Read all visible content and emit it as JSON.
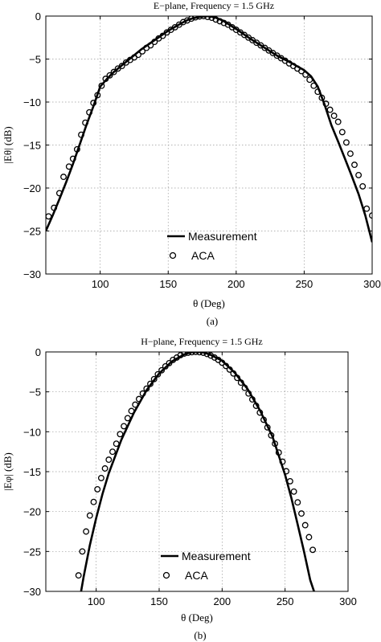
{
  "chart_data": [
    {
      "type": "line",
      "title": "E−plane, Frequency = 1.5 GHz",
      "xlabel": "θ (Deg)",
      "ylabel": "|Eθ| (dB)",
      "xlim": [
        60,
        300
      ],
      "ylim": [
        -30,
        0
      ],
      "xticks": [
        "100",
        "150",
        "200",
        "250",
        "300"
      ],
      "yticks": [
        "0",
        "−5",
        "−10",
        "−15",
        "−20",
        "−25",
        "−30"
      ],
      "grid": true,
      "legend_position": "lower-center",
      "caption": "(a)",
      "series": [
        {
          "name": "Measurement",
          "style": "solid-line",
          "x": [
            60,
            65,
            70,
            75,
            80,
            85,
            90,
            95,
            100,
            105,
            110,
            120,
            130,
            140,
            150,
            160,
            165,
            170,
            175,
            180,
            185,
            190,
            200,
            210,
            220,
            230,
            240,
            250,
            255,
            260,
            265,
            270,
            275,
            280,
            285,
            290,
            295,
            300
          ],
          "y": [
            -25,
            -23.2,
            -21.3,
            -19.3,
            -17.2,
            -14.9,
            -12.6,
            -10.5,
            -8.2,
            -7.3,
            -6.5,
            -5.2,
            -3.9,
            -2.8,
            -1.7,
            -0.8,
            -0.4,
            -0.2,
            -0.05,
            0,
            -0.2,
            -0.5,
            -1.5,
            -2.6,
            -3.6,
            -4.6,
            -5.4,
            -6.3,
            -7.0,
            -8.2,
            -10.3,
            -12.7,
            -14.6,
            -16.6,
            -18.6,
            -20.7,
            -23.2,
            -26.3
          ]
        },
        {
          "name": "ACA",
          "style": "open-circle",
          "x": [
            62,
            66,
            70,
            73,
            77,
            80,
            83,
            86,
            89,
            92,
            95,
            98,
            101,
            104,
            107,
            110,
            113,
            116,
            119,
            122,
            125,
            128,
            131,
            134,
            137,
            140,
            143,
            146,
            149,
            152,
            155,
            158,
            161,
            164,
            167,
            170,
            173,
            176,
            179,
            182,
            185,
            188,
            191,
            194,
            197,
            200,
            203,
            206,
            209,
            212,
            215,
            218,
            221,
            224,
            227,
            230,
            233,
            236,
            239,
            242,
            245,
            248,
            251,
            254,
            257,
            260,
            263,
            266,
            269,
            272,
            275,
            278,
            281,
            284,
            287,
            290,
            293,
            296,
            300
          ],
          "y": [
            -23.3,
            -22.3,
            -20.6,
            -18.7,
            -17.5,
            -16.6,
            -15.5,
            -13.8,
            -12.4,
            -11.2,
            -10.1,
            -9.2,
            -8.1,
            -7.3,
            -6.9,
            -6.5,
            -6.1,
            -5.8,
            -5.4,
            -5.1,
            -4.8,
            -4.5,
            -4.1,
            -3.7,
            -3.4,
            -3.0,
            -2.6,
            -2.3,
            -1.9,
            -1.6,
            -1.3,
            -1.0,
            -0.7,
            -0.5,
            -0.3,
            -0.15,
            -0.05,
            0,
            -0.1,
            -0.2,
            -0.4,
            -0.6,
            -0.8,
            -1.0,
            -1.3,
            -1.6,
            -1.9,
            -2.2,
            -2.5,
            -2.8,
            -3.1,
            -3.4,
            -3.7,
            -4.0,
            -4.3,
            -4.6,
            -4.9,
            -5.2,
            -5.5,
            -5.8,
            -6.1,
            -6.4,
            -6.8,
            -7.4,
            -8.1,
            -8.8,
            -9.5,
            -10.2,
            -10.9,
            -11.6,
            -12.3,
            -13.5,
            -14.7,
            -16.0,
            -17.3,
            -18.5,
            -19.8,
            -22.4,
            -23.2
          ]
        }
      ]
    },
    {
      "type": "line",
      "title": "H−plane, Frequency = 1.5 GHz",
      "xlabel": "θ (Deg)",
      "ylabel": "|Eφ| (dB)",
      "xlim": [
        60,
        300
      ],
      "ylim": [
        -30,
        0
      ],
      "xticks": [
        "100",
        "150",
        "200",
        "250",
        "300"
      ],
      "yticks": [
        "0",
        "−5",
        "−10",
        "−15",
        "−20",
        "−25",
        "−30"
      ],
      "grid": true,
      "legend_position": "lower-center",
      "caption": "(b)",
      "series": [
        {
          "name": "Measurement",
          "style": "solid-line",
          "x": [
            88,
            90,
            95,
            100,
            105,
            110,
            120,
            130,
            140,
            150,
            160,
            170,
            175,
            180,
            185,
            190,
            200,
            210,
            220,
            230,
            240,
            250,
            255,
            260,
            265,
            270,
            273
          ],
          "y": [
            -30,
            -28.2,
            -24.2,
            -20.8,
            -17.8,
            -15.2,
            -11.0,
            -7.6,
            -4.8,
            -2.7,
            -1.2,
            -0.3,
            -0.05,
            0,
            -0.05,
            -0.3,
            -1.1,
            -2.6,
            -4.6,
            -7.3,
            -10.6,
            -15.4,
            -18.3,
            -21.6,
            -25.0,
            -28.6,
            -30
          ]
        },
        {
          "name": "ACA",
          "style": "open-circle",
          "x": [
            86,
            89,
            92,
            95,
            98,
            101,
            104,
            107,
            110,
            113,
            116,
            119,
            122,
            125,
            128,
            131,
            134,
            137,
            140,
            143,
            146,
            149,
            152,
            155,
            158,
            161,
            164,
            167,
            170,
            173,
            176,
            179,
            182,
            185,
            188,
            191,
            194,
            197,
            200,
            203,
            206,
            209,
            212,
            215,
            218,
            221,
            224,
            227,
            230,
            233,
            236,
            239,
            242,
            245,
            248,
            251,
            254,
            257,
            260,
            263,
            266,
            269,
            272
          ],
          "y": [
            -28.0,
            -25.0,
            -22.5,
            -20.5,
            -18.8,
            -17.2,
            -15.8,
            -14.6,
            -13.5,
            -12.5,
            -11.5,
            -10.3,
            -9.3,
            -8.3,
            -7.4,
            -6.6,
            -5.9,
            -5.2,
            -4.6,
            -4.0,
            -3.4,
            -2.8,
            -2.3,
            -1.8,
            -1.4,
            -1.0,
            -0.7,
            -0.4,
            -0.2,
            -0.1,
            -0.03,
            0,
            -0.03,
            -0.1,
            -0.25,
            -0.45,
            -0.7,
            -1.0,
            -1.35,
            -1.75,
            -2.2,
            -2.7,
            -3.25,
            -3.85,
            -4.5,
            -5.2,
            -5.95,
            -6.75,
            -7.6,
            -8.5,
            -9.45,
            -10.45,
            -11.5,
            -12.6,
            -13.75,
            -14.95,
            -16.2,
            -17.5,
            -18.85,
            -20.25,
            -21.7,
            -23.2,
            -24.8
          ]
        }
      ]
    }
  ]
}
